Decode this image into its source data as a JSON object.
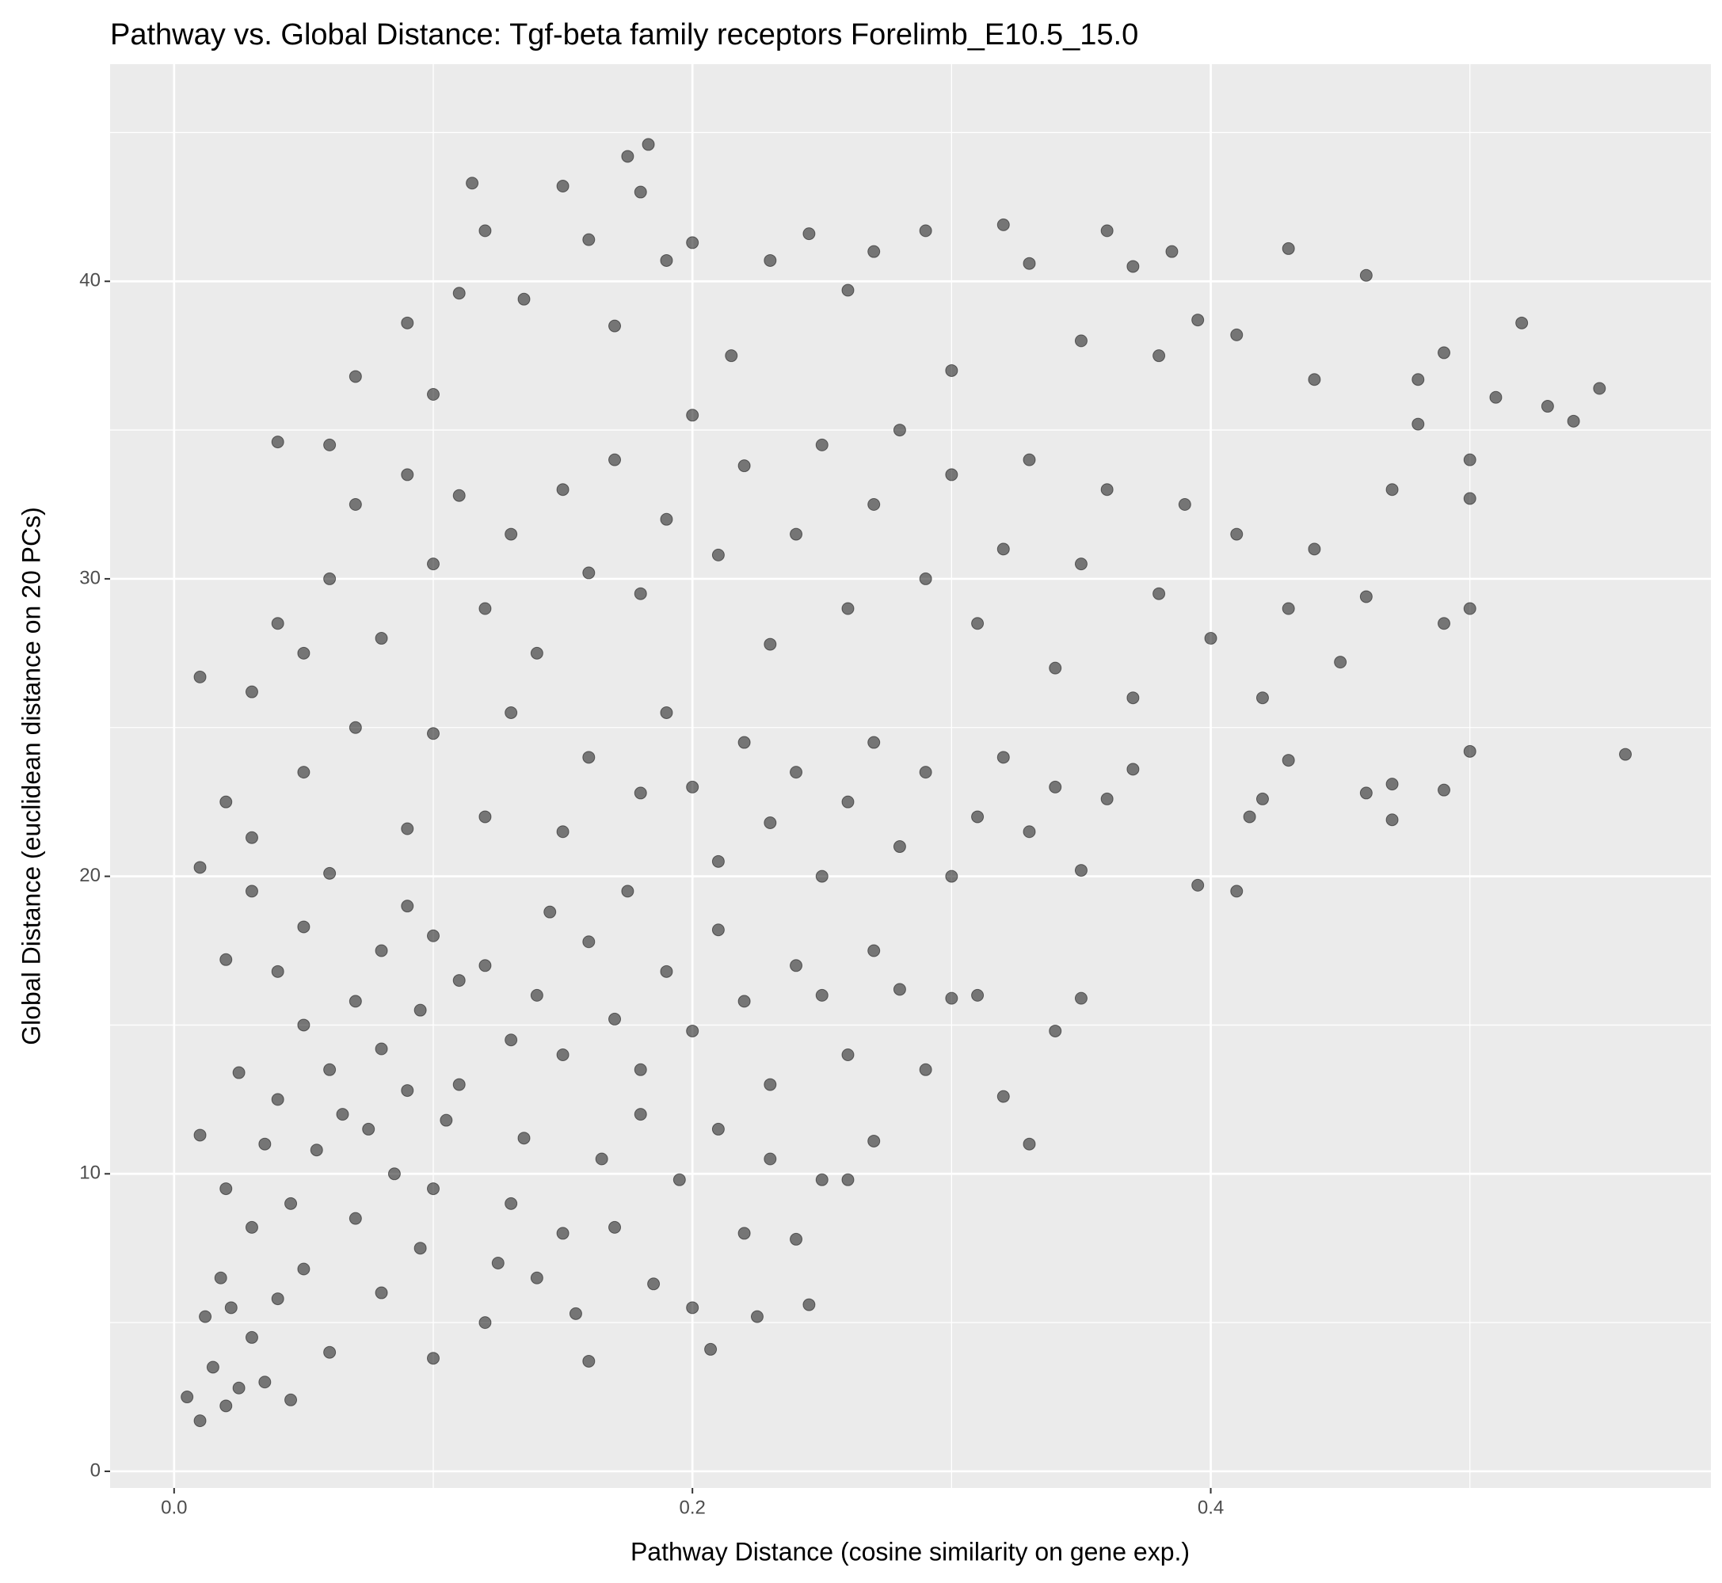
{
  "chart_data": {
    "type": "scatter",
    "title": "Pathway vs. Global Distance: Tgf-beta family receptors Forelimb_E10.5_15.0",
    "x_label": "Pathway Distance (cosine similarity on gene exp.)",
    "y_label": "Global Distance (euclidean distance on 20 PCs)",
    "color": "#000000",
    "opacity": 0.5,
    "grid": true,
    "background": "#ebebeb",
    "xlim": [
      -0.0247,
      0.593
    ],
    "ylim": [
      -0.56,
      47.3
    ],
    "xticks": [
      {
        "value": 0,
        "label": "0.0"
      },
      0.2,
      0.4
    ],
    "yticks": [
      0,
      10,
      20,
      30,
      40
    ],
    "minor_xticks": [
      0.1,
      0.3,
      0.5
    ],
    "minor_yticks": [
      5,
      15,
      25,
      35,
      45
    ],
    "x": [
      0.005,
      0.01,
      0.015,
      0.02,
      0.022,
      0.025,
      0.012,
      0.018,
      0.03,
      0.035,
      0.04,
      0.03,
      0.045,
      0.05,
      0.01,
      0.02,
      0.025,
      0.035,
      0.04,
      0.045,
      0.055,
      0.06,
      0.05,
      0.065,
      0.07,
      0.075,
      0.08,
      0.085,
      0.09,
      0.06,
      0.08,
      0.095,
      0.1,
      0.105,
      0.11,
      0.1,
      0.12,
      0.125,
      0.13,
      0.135,
      0.14,
      0.15,
      0.155,
      0.16,
      0.165,
      0.17,
      0.18,
      0.185,
      0.2,
      0.207,
      0.195,
      0.21,
      0.22,
      0.225,
      0.23,
      0.24,
      0.245,
      0.25,
      0.26,
      0.27,
      0.02,
      0.03,
      0.04,
      0.05,
      0.06,
      0.07,
      0.08,
      0.09,
      0.095,
      0.1,
      0.11,
      0.12,
      0.13,
      0.14,
      0.145,
      0.15,
      0.16,
      0.17,
      0.175,
      0.18,
      0.19,
      0.2,
      0.21,
      0.22,
      0.23,
      0.24,
      0.25,
      0.26,
      0.27,
      0.28,
      0.29,
      0.3,
      0.31,
      0.32,
      0.33,
      0.34,
      0.35,
      0.01,
      0.02,
      0.03,
      0.05,
      0.07,
      0.09,
      0.1,
      0.12,
      0.13,
      0.15,
      0.16,
      0.18,
      0.19,
      0.2,
      0.21,
      0.22,
      0.23,
      0.24,
      0.25,
      0.26,
      0.27,
      0.28,
      0.29,
      0.3,
      0.31,
      0.32,
      0.33,
      0.34,
      0.35,
      0.36,
      0.37,
      0.395,
      0.41,
      0.415,
      0.42,
      0.43,
      0.46,
      0.47,
      0.47,
      0.49,
      0.5,
      0.56,
      0.01,
      0.03,
      0.04,
      0.05,
      0.06,
      0.07,
      0.08,
      0.09,
      0.1,
      0.11,
      0.12,
      0.13,
      0.14,
      0.15,
      0.16,
      0.17,
      0.18,
      0.19,
      0.2,
      0.21,
      0.22,
      0.23,
      0.24,
      0.25,
      0.26,
      0.27,
      0.28,
      0.29,
      0.3,
      0.31,
      0.32,
      0.33,
      0.34,
      0.35,
      0.36,
      0.37,
      0.38,
      0.39,
      0.4,
      0.41,
      0.42,
      0.43,
      0.44,
      0.45,
      0.46,
      0.47,
      0.48,
      0.5,
      0.5,
      0.49,
      0.04,
      0.06,
      0.07,
      0.09,
      0.1,
      0.11,
      0.115,
      0.12,
      0.135,
      0.15,
      0.16,
      0.17,
      0.175,
      0.18,
      0.183,
      0.19,
      0.2,
      0.215,
      0.23,
      0.245,
      0.26,
      0.27,
      0.29,
      0.3,
      0.32,
      0.33,
      0.35,
      0.36,
      0.37,
      0.38,
      0.385,
      0.395,
      0.41,
      0.43,
      0.44,
      0.46,
      0.48,
      0.49,
      0.51,
      0.52,
      0.53,
      0.54,
      0.55,
      0.5
    ],
    "values": [
      2.5,
      1.7,
      3.5,
      2.2,
      5.5,
      2.8,
      5.2,
      6.5,
      4.5,
      3,
      5.8,
      8.2,
      2.4,
      6.8,
      11.3,
      9.5,
      13.4,
      11,
      12.5,
      9,
      10.8,
      13.5,
      15,
      12,
      8.5,
      11.5,
      14.2,
      10,
      12.8,
      4,
      6,
      7.5,
      9.5,
      11.8,
      13,
      3.8,
      5,
      7,
      9,
      11.2,
      6.5,
      8,
      5.3,
      3.7,
      10.5,
      8.2,
      12,
      6.3,
      5.5,
      4.1,
      9.8,
      11.5,
      8,
      5.2,
      10.5,
      7.8,
      5.6,
      9.8,
      9.8,
      11.1,
      17.2,
      19.5,
      16.8,
      18.3,
      20.1,
      15.8,
      17.5,
      19,
      15.5,
      18,
      16.5,
      17,
      14.5,
      16,
      18.8,
      14,
      17.8,
      15.2,
      19.5,
      13.5,
      16.8,
      14.8,
      18.2,
      15.8,
      13,
      17,
      16,
      14,
      17.5,
      16.2,
      13.5,
      15.9,
      16,
      12.6,
      11,
      14.8,
      15.9,
      20.3,
      22.5,
      21.3,
      23.5,
      25,
      21.6,
      24.8,
      22,
      25.5,
      21.5,
      24,
      22.8,
      25.5,
      23,
      20.5,
      24.5,
      21.8,
      23.5,
      20,
      22.5,
      24.5,
      21,
      23.5,
      20,
      22,
      24,
      21.5,
      23,
      20.2,
      22.6,
      23.6,
      19.7,
      19.5,
      22,
      22.6,
      23.9,
      22.8,
      23.1,
      21.9,
      22.9,
      24.2,
      24.1,
      26.7,
      26.2,
      28.5,
      27.5,
      30,
      32.5,
      28,
      33.5,
      30.5,
      32.8,
      29,
      31.5,
      27.5,
      33,
      30.2,
      34,
      29.5,
      32,
      35.5,
      30.8,
      33.8,
      27.8,
      31.5,
      34.5,
      29,
      32.5,
      35,
      30,
      33.5,
      28.5,
      31,
      34,
      27,
      30.5,
      33,
      26,
      29.5,
      32.5,
      28,
      31.5,
      26,
      29,
      31,
      27.2,
      29.4,
      33,
      35.2,
      32.7,
      29,
      28.5,
      34.6,
      34.5,
      36.8,
      38.6,
      36.2,
      39.6,
      43.3,
      41.7,
      39.4,
      43.2,
      41.4,
      38.5,
      44.2,
      43,
      44.6,
      40.7,
      41.3,
      37.5,
      40.7,
      41.6,
      39.7,
      41,
      41.7,
      37,
      41.9,
      40.6,
      38,
      41.7,
      40.5,
      37.5,
      41,
      38.7,
      38.2,
      41.1,
      36.7,
      40.2,
      36.7,
      37.6,
      36.1,
      38.6,
      35.8,
      35.3,
      36.4,
      34
    ]
  }
}
